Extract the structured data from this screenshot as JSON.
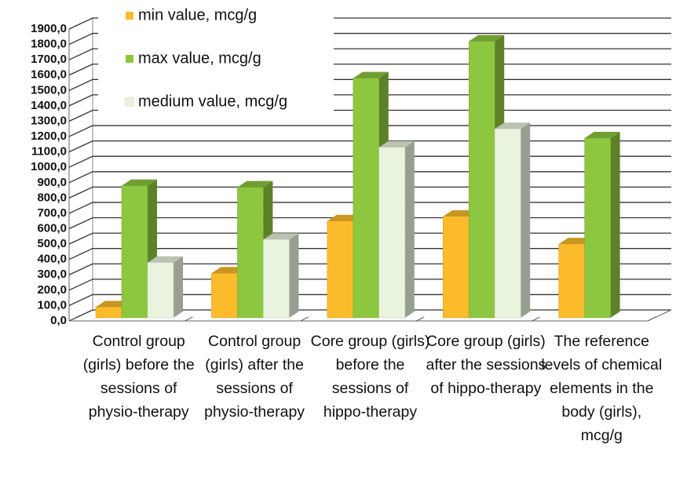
{
  "chart_data": {
    "type": "bar3d",
    "categories": [
      "Control group (girls) before the sessions of physio-therapy",
      "Control group (girls) after the sessions of physio-therapy",
      "Core group (girls) before the sessions of hippo-therapy",
      "Core group (girls) after the sessions of hippo-therapy",
      "The reference levels of chemical elements in the body (girls), mcg/g"
    ],
    "series": [
      {
        "name": "min value, mcg/g",
        "color": "#fbbb2b",
        "values": [
          90,
          310,
          650,
          680,
          500
        ]
      },
      {
        "name": "max value, mcg/g",
        "color": "#8dc63f",
        "values": [
          880,
          870,
          1580,
          1820,
          1190
        ]
      },
      {
        "name": "medium value, mcg/g",
        "color": "#e9f4df",
        "values": [
          380,
          530,
          1130,
          1250,
          null
        ]
      }
    ],
    "ylim": [
      0,
      1900
    ],
    "yticks": [
      {
        "value": 0,
        "label": "0,0"
      },
      {
        "value": 100,
        "label": "100,0"
      },
      {
        "value": 200,
        "label": "200,0"
      },
      {
        "value": 300,
        "label": "300,0"
      },
      {
        "value": 400,
        "label": "400,0"
      },
      {
        "value": 500,
        "label": "500,0"
      },
      {
        "value": 600,
        "label": "600,0"
      },
      {
        "value": 700,
        "label": "700,0"
      },
      {
        "value": 800,
        "label": "800,0"
      },
      {
        "value": 900,
        "label": "900,0"
      },
      {
        "value": 1000,
        "label": "1000,0"
      },
      {
        "value": 1100,
        "label": "1100,0"
      },
      {
        "value": 1200,
        "label": "1200,0"
      },
      {
        "value": 1300,
        "label": "1300,0"
      },
      {
        "value": 1400,
        "label": "1400,0"
      },
      {
        "value": 1500,
        "label": "1500,0"
      },
      {
        "value": 1600,
        "label": "1600,0"
      },
      {
        "value": 1700,
        "label": "1700,0"
      },
      {
        "value": 1800,
        "label": "1800,0"
      },
      {
        "value": 1900,
        "label": "1900,0"
      }
    ],
    "grid": true,
    "legend": "top-left"
  }
}
